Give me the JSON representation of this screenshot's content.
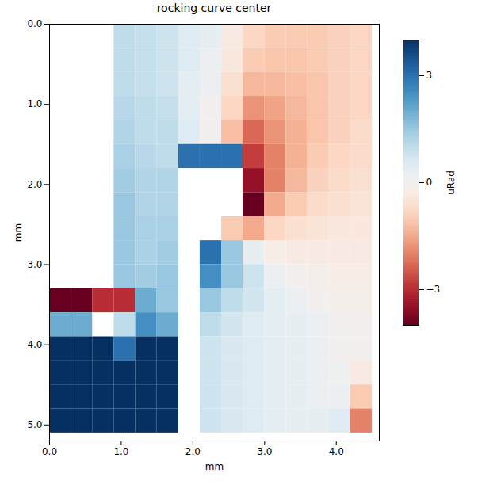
{
  "chart_data": {
    "type": "heatmap",
    "title": "rocking curve center",
    "x_label": "mm",
    "y_label": "mm",
    "xlim": [
      0,
      4.6
    ],
    "ylim": [
      0,
      5.2
    ],
    "xticks": [
      0,
      1,
      2,
      3,
      4
    ],
    "yticks": [
      0,
      1,
      2,
      3,
      4,
      5
    ],
    "x_edges": [
      0,
      0.3,
      0.6,
      0.9,
      1.2,
      1.5,
      1.8,
      2.1,
      2.4,
      2.7,
      3.0,
      3.3,
      3.6,
      3.9,
      4.2,
      4.5
    ],
    "y_edges": [
      0,
      0.3,
      0.6,
      0.9,
      1.2,
      1.5,
      1.8,
      2.1,
      2.4,
      2.7,
      3.0,
      3.3,
      3.6,
      3.9,
      4.2,
      4.5,
      4.8,
      5.1
    ],
    "cells": [
      [
        null,
        null,
        null,
        1,
        0.9,
        0.8,
        0.5,
        0.3,
        -0.3,
        -0.8,
        -1,
        -1,
        -1,
        -0.9,
        -0.8
      ],
      [
        null,
        null,
        null,
        1,
        0.9,
        0.8,
        0.5,
        0.2,
        -0.4,
        -1,
        -1.1,
        -1.1,
        -1,
        -0.9,
        -0.8
      ],
      [
        null,
        null,
        null,
        1,
        0.9,
        0.8,
        0.4,
        0.2,
        -0.6,
        -1.3,
        -1.3,
        -1.2,
        -1.1,
        -0.9,
        -0.8
      ],
      [
        null,
        null,
        null,
        1.1,
        1,
        0.9,
        0.4,
        0,
        -0.8,
        -1.8,
        -1.6,
        -1.3,
        -1.1,
        -0.9,
        -0.8
      ],
      [
        null,
        null,
        null,
        1.2,
        1,
        1,
        0.5,
        0,
        -1.2,
        -2.3,
        -1.8,
        -1.4,
        -1.1,
        -0.9,
        -0.7
      ],
      [
        null,
        null,
        null,
        1.3,
        1.1,
        1,
        3,
        3,
        3,
        -2.8,
        -2,
        -1.4,
        -1,
        -0.8,
        -0.7
      ],
      [
        null,
        null,
        null,
        1.4,
        1.2,
        1.2,
        null,
        null,
        null,
        -3.5,
        -2,
        -1.3,
        -0.9,
        -0.7,
        -0.6
      ],
      [
        null,
        null,
        null,
        1.5,
        1.2,
        1.2,
        null,
        null,
        null,
        -4,
        -1.5,
        -1,
        -0.7,
        -0.6,
        -0.5
      ],
      [
        null,
        null,
        null,
        1.5,
        1.3,
        1.3,
        null,
        null,
        -1,
        -1.5,
        -0.8,
        -0.6,
        -0.5,
        -0.4,
        -0.4
      ],
      [
        null,
        null,
        null,
        1.5,
        1.3,
        1.4,
        null,
        3,
        1.5,
        0.3,
        -0.2,
        -0.3,
        -0.3,
        -0.3,
        -0.3
      ],
      [
        null,
        null,
        null,
        1.5,
        1.4,
        1.5,
        null,
        2.5,
        1.5,
        0.8,
        0.2,
        0,
        -0.1,
        -0.2,
        -0.2
      ],
      [
        -4,
        -4,
        -3,
        -3,
        2,
        1.5,
        null,
        1.5,
        1,
        0.7,
        0.4,
        0.2,
        0,
        -0.1,
        -0.1
      ],
      [
        2,
        2,
        null,
        1,
        2.5,
        2,
        null,
        1,
        0.7,
        0.5,
        0.4,
        0.3,
        0.2,
        0,
        0
      ],
      [
        4,
        4,
        4,
        3,
        4,
        4,
        null,
        0.8,
        0.6,
        0.5,
        0.4,
        0.3,
        0.2,
        0,
        0
      ],
      [
        4,
        4,
        4,
        4,
        4,
        4,
        null,
        0.8,
        0.6,
        0.5,
        0.4,
        0.3,
        0.2,
        0.1,
        -0.3
      ],
      [
        4,
        4,
        4,
        4,
        4,
        4,
        null,
        0.8,
        0.6,
        0.5,
        0.4,
        0.3,
        0.2,
        0.2,
        -1
      ],
      [
        4,
        4,
        4,
        4,
        4,
        4,
        null,
        0.8,
        0.6,
        0.5,
        0.4,
        0.3,
        0.3,
        0.5,
        -2
      ]
    ],
    "colorbar": {
      "range": [
        -4,
        4
      ],
      "ticks": [
        -3,
        0,
        3
      ],
      "label": "uRad"
    }
  }
}
